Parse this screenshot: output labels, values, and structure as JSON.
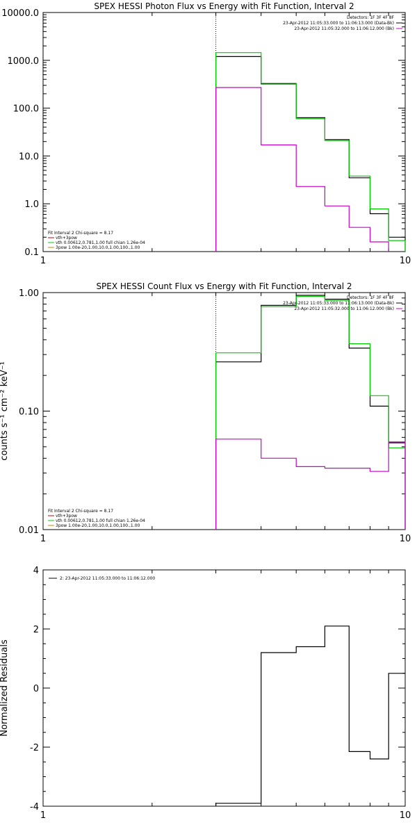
{
  "chart_data": [
    {
      "type": "line",
      "panel": "photon",
      "title": "SPEX HESSI Photon Flux vs Energy with Fit Function, Interval 2",
      "xlabel": "",
      "ylabel": "",
      "xscale": "log",
      "yscale": "log",
      "xlim": [
        1,
        10
      ],
      "ylim": [
        0.1,
        10000
      ],
      "x_ticks": [
        {
          "v": 1,
          "label": "1"
        },
        {
          "v": 10,
          "label": "10"
        }
      ],
      "y_ticks": [
        {
          "v": 0.1,
          "label": "0.1"
        },
        {
          "v": 1,
          "label": "1.0"
        },
        {
          "v": 10,
          "label": "10.0"
        },
        {
          "v": 100,
          "label": "100.0"
        },
        {
          "v": 1000,
          "label": "1000.0"
        },
        {
          "v": 10000,
          "label": "10000.0"
        }
      ],
      "marker_x": 3,
      "series": [
        {
          "color": "#000000",
          "edges": [
            3,
            4,
            5,
            6,
            7,
            8,
            9,
            10
          ],
          "values": [
            1200,
            320,
            63,
            22,
            3.5,
            0.62,
            0.2
          ]
        },
        {
          "color": "#00cc00",
          "edges": [
            3,
            4,
            5,
            6,
            7,
            8,
            9,
            10
          ],
          "values": [
            1450,
            330,
            60,
            21,
            3.8,
            0.78,
            0.17
          ]
        },
        {
          "color": "#cc00cc",
          "edges": [
            3,
            4,
            5,
            6,
            7,
            8,
            9
          ],
          "values": [
            270,
            17,
            2.3,
            0.9,
            0.32,
            0.16
          ]
        }
      ],
      "legend_top": [
        {
          "text": "Detectors: 1F 3F 4F 8F",
          "color": ""
        },
        {
          "text": "23-Apr-2012 11:05:33.000 to 11:06:13.000 (Data-Bk)",
          "color": "#000000"
        },
        {
          "text": "23-Apr-2012 11:05:32.000 to 11:06:12.000 (Bk)",
          "color": "#cc00cc"
        }
      ],
      "legend_bottom": [
        {
          "text": "Fit Interval 2   Chi-square = 8.17",
          "color": ""
        },
        {
          "text": "vth+3pow",
          "color": "#cc0000"
        },
        {
          "text": "vth 0.00612,0.781,1.00  full chian 1.26e-04",
          "color": "#00cc00"
        },
        {
          "text": "3pow 1.00e-20,1.00,10.0,1.00,100.,1.00",
          "color": "#cc8800"
        }
      ]
    },
    {
      "type": "line",
      "panel": "count",
      "title": "SPEX HESSI Count Flux vs Energy with Fit Function, Interval 2",
      "xlabel": "",
      "ylabel": "counts s⁻¹ cm⁻² keV⁻¹",
      "xscale": "log",
      "yscale": "log",
      "xlim": [
        1,
        10
      ],
      "ylim": [
        0.01,
        1.0
      ],
      "x_ticks": [
        {
          "v": 1,
          "label": "1"
        },
        {
          "v": 10,
          "label": "10"
        }
      ],
      "y_ticks": [
        {
          "v": 0.01,
          "label": "0.01"
        },
        {
          "v": 0.1,
          "label": "0.10"
        },
        {
          "v": 1,
          "label": "1.00"
        }
      ],
      "marker_x": 3,
      "series": [
        {
          "color": "#000000",
          "edges": [
            3,
            4,
            5,
            6,
            7,
            8,
            9,
            10
          ],
          "values": [
            0.26,
            0.78,
            0.95,
            0.88,
            0.34,
            0.11,
            0.054
          ]
        },
        {
          "color": "#00cc00",
          "edges": [
            3,
            4,
            5,
            6,
            7,
            8,
            9,
            10
          ],
          "values": [
            0.31,
            0.76,
            0.93,
            0.86,
            0.37,
            0.135,
            0.049
          ]
        },
        {
          "color": "#cc00cc",
          "edges": [
            3,
            4,
            5,
            6,
            7,
            8,
            9,
            10
          ],
          "values": [
            0.058,
            0.04,
            0.034,
            0.033,
            0.033,
            0.031,
            0.055
          ]
        }
      ],
      "legend_top": [
        {
          "text": "Detectors: 1F 3F 4F 8F",
          "color": ""
        },
        {
          "text": "23-Apr-2012 11:05:33.000 to 11:06:13.000 (Data-Bk)",
          "color": "#000000"
        },
        {
          "text": "23-Apr-2012 11:05:32.000 to 11:06:12.000 (Bk)",
          "color": "#cc00cc"
        }
      ],
      "legend_bottom": [
        {
          "text": "Fit Interval 2   Chi-square = 8.17",
          "color": ""
        },
        {
          "text": "vth+3pow",
          "color": "#cc0000"
        },
        {
          "text": "vth 0.00612,0.781,1.00  full chian 1.26e-04",
          "color": "#00cc00"
        },
        {
          "text": "3pow 1.00e-20,1.00,10.0,1.00,100.,1.00",
          "color": "#cc8800"
        }
      ]
    },
    {
      "type": "line",
      "panel": "residuals",
      "title": "",
      "xlabel": "",
      "ylabel": "Normalized Residuals",
      "xscale": "log",
      "yscale": "linear",
      "xlim": [
        1,
        10
      ],
      "ylim": [
        -4,
        4
      ],
      "x_ticks": [
        {
          "v": 1,
          "label": "1"
        },
        {
          "v": 10,
          "label": "10"
        }
      ],
      "y_ticks": [
        {
          "v": -4,
          "label": "-4"
        },
        {
          "v": -2,
          "label": "-2"
        },
        {
          "v": 0,
          "label": "0"
        },
        {
          "v": 2,
          "label": "2"
        },
        {
          "v": 4,
          "label": "4"
        }
      ],
      "series": [
        {
          "color": "#000000",
          "edges": [
            3,
            4,
            5,
            6,
            7,
            8,
            9,
            10
          ],
          "values": [
            -3.9,
            1.2,
            1.4,
            2.1,
            -2.15,
            -2.4,
            0.5
          ]
        }
      ],
      "legend_top": [
        {
          "text": "2: 23-Apr-2012 11:05:33.000 to 11:06:12.000",
          "color": "#000000"
        }
      ],
      "legend_bottom": []
    }
  ]
}
